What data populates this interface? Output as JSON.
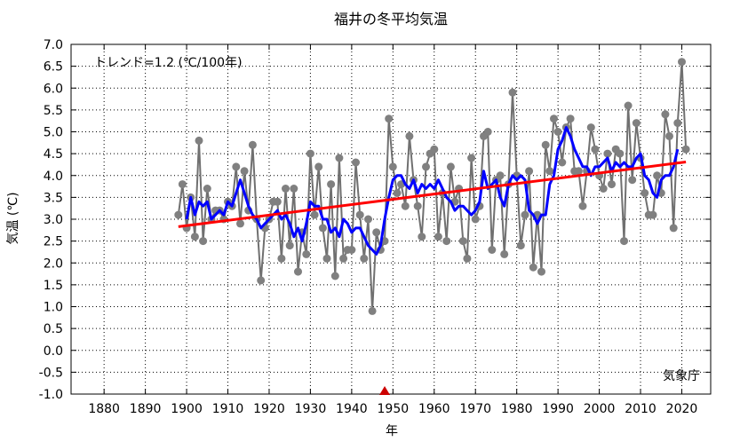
{
  "chart_data": {
    "type": "line",
    "title": "福井の冬平均気温",
    "xlabel": "年",
    "ylabel": "気温 (℃)",
    "xlim": [
      1872,
      2027
    ],
    "ylim": [
      -1.0,
      7.0
    ],
    "x_ticks": [
      1880,
      1890,
      1900,
      1910,
      1920,
      1930,
      1940,
      1950,
      1960,
      1970,
      1980,
      1990,
      2000,
      2010,
      2020
    ],
    "y_ticks": [
      -1.0,
      -0.5,
      0.0,
      0.5,
      1.0,
      1.5,
      2.0,
      2.5,
      3.0,
      3.5,
      4.0,
      4.5,
      5.0,
      5.5,
      6.0,
      6.5,
      7.0
    ],
    "trend_label": "トレンド=1.2 (℃/100年)",
    "source_label": "気象庁",
    "marker_year": 1948,
    "grid": true,
    "colors": {
      "annual": "#707070",
      "annual_marker": "#808080",
      "moving_average": "#0000ff",
      "trend": "#ff0000",
      "marker": "#cc0000"
    },
    "series": [
      {
        "type": "annual",
        "x": [
          1898,
          1899,
          1900,
          1901,
          1902,
          1903,
          1904,
          1905,
          1906,
          1907,
          1908,
          1909,
          1910,
          1911,
          1912,
          1913,
          1914,
          1915,
          1916,
          1917,
          1918,
          1919,
          1920,
          1921,
          1922,
          1923,
          1924,
          1925,
          1926,
          1927,
          1928,
          1929,
          1930,
          1931,
          1932,
          1933,
          1934,
          1935,
          1936,
          1937,
          1938,
          1939,
          1940,
          1941,
          1942,
          1943,
          1944,
          1945,
          1946,
          1947,
          1948,
          1949,
          1950,
          1951,
          1952,
          1953,
          1954,
          1955,
          1956,
          1957,
          1958,
          1959,
          1960,
          1961,
          1962,
          1963,
          1964,
          1965,
          1966,
          1967,
          1968,
          1969,
          1970,
          1971,
          1972,
          1973,
          1974,
          1975,
          1976,
          1977,
          1978,
          1979,
          1980,
          1981,
          1982,
          1983,
          1984,
          1985,
          1986,
          1987,
          1988,
          1989,
          1990,
          1991,
          1992,
          1993,
          1994,
          1995,
          1996,
          1997,
          1998,
          1999,
          2000,
          2001,
          2002,
          2003,
          2004,
          2005,
          2006,
          2007,
          2008,
          2009,
          2010,
          2011,
          2012,
          2013,
          2014,
          2015,
          2016,
          2017,
          2018,
          2019,
          2020,
          2021
        ],
        "values": [
          3.1,
          3.8,
          2.8,
          3.5,
          2.6,
          4.8,
          2.5,
          3.7,
          3.0,
          3.2,
          3.2,
          3.0,
          3.4,
          3.3,
          4.2,
          2.9,
          4.1,
          3.2,
          4.7,
          3.0,
          1.6,
          2.8,
          3.0,
          3.4,
          3.4,
          2.1,
          3.7,
          2.4,
          3.7,
          1.8,
          2.7,
          2.2,
          4.5,
          3.1,
          4.2,
          2.8,
          2.1,
          3.8,
          1.7,
          4.4,
          2.1,
          2.3,
          2.3,
          4.3,
          3.1,
          2.1,
          3.0,
          0.9,
          2.7,
          2.3,
          2.5,
          5.3,
          4.2,
          3.6,
          3.8,
          3.3,
          4.9,
          3.9,
          3.3,
          2.6,
          4.2,
          4.5,
          4.6,
          2.6,
          3.6,
          2.5,
          4.2,
          3.4,
          3.7,
          2.5,
          2.1,
          4.4,
          3.0,
          3.3,
          4.9,
          5.0,
          2.3,
          3.9,
          4.0,
          2.2,
          3.8,
          5.9,
          4.0,
          2.4,
          3.1,
          4.1,
          1.9,
          3.1,
          1.8,
          4.7,
          4.1,
          5.3,
          5.0,
          4.3,
          5.1,
          5.3,
          4.1,
          4.1,
          3.3,
          4.1,
          5.1,
          4.6,
          4.0,
          3.7,
          4.5,
          3.8,
          4.6,
          4.5,
          2.5,
          5.6,
          3.9,
          5.2,
          4.4,
          3.6,
          3.1,
          3.1,
          4.0,
          3.6,
          5.4,
          4.9,
          2.8,
          5.2,
          6.6,
          4.6
        ]
      },
      {
        "type": "moving_average",
        "x": [
          1900,
          1901,
          1902,
          1903,
          1904,
          1905,
          1906,
          1907,
          1908,
          1909,
          1910,
          1911,
          1912,
          1913,
          1914,
          1915,
          1916,
          1917,
          1918,
          1919,
          1920,
          1921,
          1922,
          1923,
          1924,
          1925,
          1926,
          1927,
          1928,
          1929,
          1930,
          1931,
          1932,
          1933,
          1934,
          1935,
          1936,
          1937,
          1938,
          1939,
          1940,
          1941,
          1942,
          1943,
          1944,
          1945,
          1946,
          1947,
          1948,
          1949,
          1950,
          1951,
          1952,
          1953,
          1954,
          1955,
          1956,
          1957,
          1958,
          1959,
          1960,
          1961,
          1962,
          1963,
          1964,
          1965,
          1966,
          1967,
          1968,
          1969,
          1970,
          1971,
          1972,
          1973,
          1974,
          1975,
          1976,
          1977,
          1978,
          1979,
          1980,
          1981,
          1982,
          1983,
          1984,
          1985,
          1986,
          1987,
          1988,
          1989,
          1990,
          1991,
          1992,
          1993,
          1994,
          1995,
          1996,
          1997,
          1998,
          1999,
          2000,
          2001,
          2002,
          2003,
          2004,
          2005,
          2006,
          2007,
          2008,
          2009,
          2010,
          2011,
          2012,
          2013,
          2014,
          2015,
          2016,
          2017,
          2018,
          2019
        ],
        "values": [
          3.0,
          3.5,
          3.1,
          3.4,
          3.3,
          3.4,
          3.0,
          3.1,
          3.2,
          3.1,
          3.4,
          3.3,
          3.6,
          3.9,
          3.6,
          3.3,
          3.1,
          3.0,
          2.8,
          2.9,
          3.0,
          3.1,
          3.2,
          3.0,
          3.1,
          2.9,
          2.6,
          2.8,
          2.5,
          2.9,
          3.4,
          3.3,
          3.3,
          3.0,
          3.0,
          2.7,
          2.8,
          2.6,
          3.0,
          2.9,
          2.7,
          2.8,
          2.8,
          2.6,
          2.4,
          2.3,
          2.2,
          2.4,
          3.0,
          3.5,
          3.9,
          4.0,
          4.0,
          3.8,
          3.7,
          3.9,
          3.6,
          3.8,
          3.7,
          3.8,
          3.7,
          3.9,
          3.7,
          3.5,
          3.4,
          3.2,
          3.3,
          3.3,
          3.2,
          3.1,
          3.2,
          3.4,
          4.1,
          3.7,
          3.8,
          3.9,
          3.5,
          3.3,
          3.8,
          4.0,
          3.9,
          4.0,
          3.9,
          3.2,
          3.1,
          2.9,
          3.1,
          3.1,
          3.8,
          4.0,
          4.6,
          4.8,
          5.1,
          4.9,
          4.6,
          4.4,
          4.2,
          4.2,
          4.0,
          4.2,
          4.2,
          4.3,
          4.4,
          4.1,
          4.3,
          4.2,
          4.3,
          4.2,
          4.2,
          4.4,
          4.5,
          4.0,
          3.9,
          3.6,
          3.5,
          3.9,
          4.0,
          4.0,
          4.2,
          4.6
        ]
      },
      {
        "type": "trend",
        "x": [
          1898,
          2021
        ],
        "values": [
          2.83,
          4.31
        ]
      }
    ]
  }
}
